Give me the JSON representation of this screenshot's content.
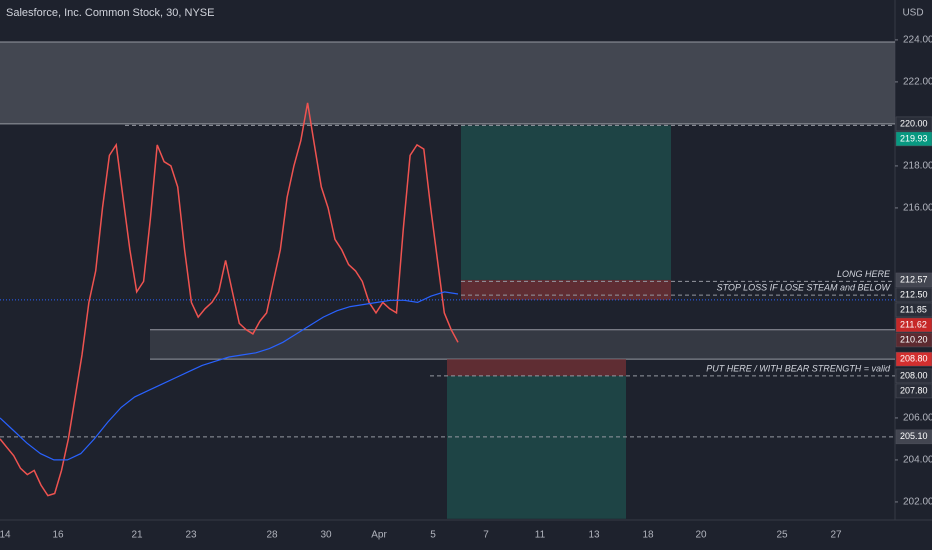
{
  "chart_data": {
    "type": "line",
    "title": "Salesforce, Inc. Common Stock, 30, NYSE",
    "currency": "USD",
    "ylim": [
      201.14,
      225.9
    ],
    "yticks": [
      {
        "value": 224,
        "label": "224.00"
      },
      {
        "value": 222,
        "label": "222.00"
      },
      {
        "value": 218,
        "label": "218.00"
      },
      {
        "value": 216,
        "label": "216.00"
      },
      {
        "value": 206,
        "label": "206.00"
      },
      {
        "value": 204,
        "label": "204.00"
      },
      {
        "value": 202,
        "label": "202.00"
      }
    ],
    "x_labels": [
      "14",
      "16",
      "21",
      "23",
      "28",
      "30",
      "Apr",
      "5",
      "7",
      "11",
      "13",
      "18",
      "20",
      "25",
      "27"
    ],
    "series": [
      {
        "color": "#ef5350",
        "values": [
          205,
          204.6,
          204.2,
          203.6,
          203.3,
          203.5,
          202.8,
          202.3,
          202.4,
          203.5,
          205,
          207,
          209,
          211.5,
          213,
          216,
          218.5,
          219,
          216.5,
          214,
          212,
          212.5,
          215.5,
          219,
          218.2,
          218,
          217,
          214,
          211.5,
          210.8,
          211.2,
          211.5,
          212,
          213.5,
          212,
          210.5,
          210.2,
          210,
          210.6,
          211,
          212.5,
          214,
          216.5,
          218,
          219.2,
          221,
          219,
          217,
          216,
          214.5,
          214,
          213.3,
          213,
          212.5,
          211.5,
          211,
          211.5,
          211.2,
          211,
          215,
          218.5,
          219,
          218.8,
          216,
          213.5,
          211,
          210.2,
          209.6
        ]
      },
      {
        "color": "#2962ff",
        "values": [
          206,
          205.4,
          204.8,
          204.3,
          204,
          204,
          204.3,
          205,
          205.8,
          206.5,
          207,
          207.3,
          207.6,
          207.9,
          208.2,
          208.5,
          208.7,
          208.9,
          209,
          209.1,
          209.3,
          209.6,
          210,
          210.4,
          210.8,
          211.1,
          211.3,
          211.4,
          211.5,
          211.6,
          211.6,
          211.5,
          211.8,
          212,
          211.9
        ]
      }
    ],
    "zones": [
      {
        "from": 220,
        "to": 223.9,
        "color": "#4a4d58"
      },
      {
        "from": 208.8,
        "to": 210.2,
        "color": "#3a3d48"
      },
      {
        "from": 212.57,
        "to": 219.93,
        "color": "#1f4a4a"
      },
      {
        "from": 211.62,
        "to": 212.57,
        "color": "#6b2f35"
      },
      {
        "from": 208.0,
        "to": 208.8,
        "color": "#6b2f35"
      },
      {
        "from": 201.2,
        "to": 208.0,
        "color": "#1f4a4a"
      }
    ],
    "lines": [
      {
        "value": 219.93,
        "style": "dash",
        "color": "#9598a1"
      },
      {
        "value": 212.5,
        "style": "dash",
        "color": "#9598a1"
      },
      {
        "value": 211.85,
        "style": "dash",
        "color": "#9598a1"
      },
      {
        "value": 211.62,
        "style": "dot",
        "color": "#2962ff"
      },
      {
        "value": 208.0,
        "style": "dash",
        "color": "#9598a1"
      },
      {
        "value": 205.1,
        "style": "dash",
        "color": "#9598a1"
      }
    ],
    "annotations": [
      {
        "text": "LONG HERE",
        "value": 212.5
      },
      {
        "text": "STOP LOSS IF LOSE STEAM and BELOW",
        "value": 211.85
      },
      {
        "text": "PUT HERE / WITH BEAR STRENGTH = valid",
        "value": 208.0
      }
    ],
    "price_tags": [
      {
        "value": 220,
        "label": "220.00",
        "color": "#2a2e39"
      },
      {
        "value": 219.93,
        "label": "219.93",
        "color": "#089981"
      },
      {
        "value": 212.57,
        "label": "212.57",
        "color": "#434651"
      },
      {
        "value": 212.5,
        "label": "212.50",
        "color": "#2a2e39"
      },
      {
        "value": 211.85,
        "label": "211.85",
        "color": "#2a2e39"
      },
      {
        "value": 211.62,
        "label": "211.62",
        "color": "#c62828"
      },
      {
        "value": 210.2,
        "label": "210.20",
        "color": "#5d2a30"
      },
      {
        "value": 208.8,
        "label": "208.80",
        "color": "#d32f2f"
      },
      {
        "value": 208.0,
        "label": "208.00",
        "color": "#2a2e39"
      },
      {
        "value": 207.8,
        "label": "207.80",
        "color": "#2a2e39"
      },
      {
        "value": 205.1,
        "label": "205.10",
        "color": "#434651"
      }
    ]
  }
}
